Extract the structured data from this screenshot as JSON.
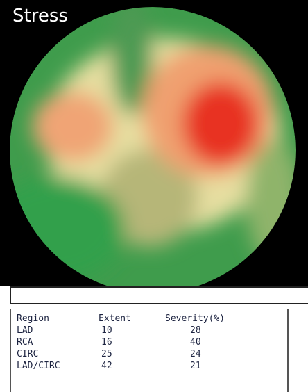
{
  "title": "Stress",
  "table": {
    "columns": [
      "Region",
      "Extent",
      "Severity(%)"
    ],
    "rows": [
      [
        "LAD",
        10,
        28
      ],
      [
        "RCA",
        16,
        40
      ],
      [
        "CIRC",
        25,
        24
      ],
      [
        "LAD/CIRC",
        42,
        21
      ]
    ]
  }
}
